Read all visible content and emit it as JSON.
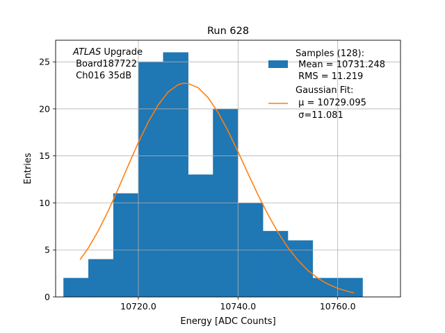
{
  "chart_data": {
    "type": "bar",
    "title": "Run 628",
    "xlabel": "Energy [ADC Counts]",
    "ylabel": "Entries",
    "xlim": [
      10703.4,
      10772.6
    ],
    "ylim": [
      0,
      27.3
    ],
    "grid": true,
    "x_ticks": [
      {
        "value": 10720,
        "label": "10720.0"
      },
      {
        "value": 10740,
        "label": "10740.0"
      },
      {
        "value": 10760,
        "label": "10760.0"
      }
    ],
    "y_ticks": [
      {
        "value": 0,
        "label": "0"
      },
      {
        "value": 5,
        "label": "5"
      },
      {
        "value": 10,
        "label": "10"
      },
      {
        "value": 15,
        "label": "15"
      },
      {
        "value": 20,
        "label": "20"
      },
      {
        "value": 25,
        "label": "25"
      }
    ],
    "histogram": {
      "bin_edges": [
        10705,
        10710,
        10715,
        10720,
        10725,
        10730,
        10735,
        10740,
        10745,
        10750,
        10755,
        10760,
        10765
      ],
      "counts": [
        2,
        4,
        11,
        25,
        26,
        13,
        20,
        10,
        7,
        6,
        2,
        2
      ],
      "color": "#1f77b4"
    },
    "fit_curve": {
      "color": "#ff7f0e",
      "points": [
        [
          10708.3,
          3.95
        ],
        [
          10710.0,
          5.23
        ],
        [
          10712.0,
          7.07
        ],
        [
          10714.0,
          9.2
        ],
        [
          10716.0,
          11.55
        ],
        [
          10718.0,
          14.01
        ],
        [
          10720.0,
          16.42
        ],
        [
          10722.0,
          18.62
        ],
        [
          10724.0,
          20.44
        ],
        [
          10726.0,
          21.81
        ],
        [
          10728.0,
          22.58
        ],
        [
          10729.095,
          22.73
        ],
        [
          10730.0,
          22.69
        ],
        [
          10732.0,
          22.25
        ],
        [
          10734.0,
          21.19
        ],
        [
          10736.0,
          19.61
        ],
        [
          10738.0,
          17.65
        ],
        [
          10740.0,
          15.43
        ],
        [
          10742.0,
          13.13
        ],
        [
          10744.0,
          10.87
        ],
        [
          10746.0,
          8.77
        ],
        [
          10748.0,
          6.88
        ],
        [
          10750.0,
          5.26
        ],
        [
          10752.0,
          3.91
        ],
        [
          10754.0,
          2.83
        ],
        [
          10756.0,
          1.99
        ],
        [
          10758.0,
          1.37
        ],
        [
          10760.0,
          0.91
        ],
        [
          10762.0,
          0.59
        ],
        [
          10763.3,
          0.43
        ]
      ]
    },
    "legend": {
      "placement": "top-right",
      "histogram_lines": [
        "Samples (128):",
        " Mean = 10731.248",
        " RMS = 11.219"
      ],
      "fit_lines": [
        "Gaussian Fit:",
        " μ = 10729.095",
        " σ=11.081"
      ]
    },
    "annotation": {
      "italic": "ATLAS",
      "rest": " Upgrade",
      "lines": [
        " Board187722",
        " Ch016 35dB"
      ]
    }
  }
}
